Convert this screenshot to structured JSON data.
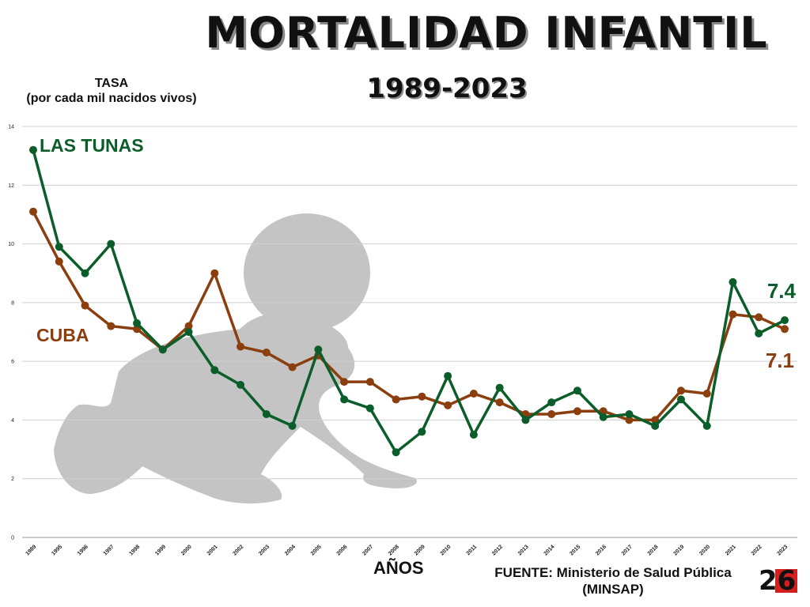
{
  "chart_data": {
    "type": "line",
    "title": "MORTALIDAD INFANTIL",
    "subtitle": "1989-2023",
    "ylabel_line1": "TASA",
    "ylabel_line2": "(por cada mil nacidos vivos)",
    "xlabel": "AÑOS",
    "ylim": [
      0,
      14
    ],
    "yticks": [
      0,
      2,
      4,
      6,
      8,
      10,
      12,
      14
    ],
    "grid": true,
    "categories": [
      "1989",
      "1995",
      "1996",
      "1997",
      "1998",
      "1999",
      "2000",
      "2001",
      "2002",
      "2003",
      "2004",
      "2005",
      "2006",
      "2007",
      "2008",
      "2009",
      "2010",
      "2011",
      "2012",
      "2013",
      "2014",
      "2015",
      "2016",
      "2017",
      "2018",
      "2019",
      "2020",
      "2021",
      "2022",
      "2023"
    ],
    "series": [
      {
        "name": "LAS TUNAS",
        "color": "#0b5e2a",
        "values": [
          13.2,
          9.9,
          9.0,
          10.0,
          7.3,
          6.4,
          7.0,
          5.7,
          5.2,
          4.2,
          3.8,
          6.4,
          4.7,
          4.4,
          2.9,
          3.6,
          5.5,
          3.5,
          5.1,
          4.0,
          4.6,
          5.0,
          4.1,
          4.2,
          3.8,
          4.7,
          3.8,
          8.7,
          6.95,
          7.4
        ],
        "end_label": "7.4"
      },
      {
        "name": "CUBA",
        "color": "#8b3e0e",
        "values": [
          11.1,
          9.4,
          7.9,
          7.2,
          7.1,
          6.4,
          7.2,
          9.0,
          6.5,
          6.3,
          5.8,
          6.2,
          5.3,
          5.3,
          4.7,
          4.8,
          4.5,
          4.9,
          4.6,
          4.2,
          4.2,
          4.3,
          4.3,
          4.0,
          4.0,
          5.0,
          4.9,
          7.6,
          7.5,
          7.1
        ],
        "end_label": "7.1"
      }
    ]
  },
  "source_line1": "FUENTE: Ministerio de Salud Pública",
  "source_line2": "(MINSAP)",
  "logo_text": "26",
  "icons": {
    "background": "crawling-baby-silhouette",
    "logo": "26-logo-icon"
  }
}
